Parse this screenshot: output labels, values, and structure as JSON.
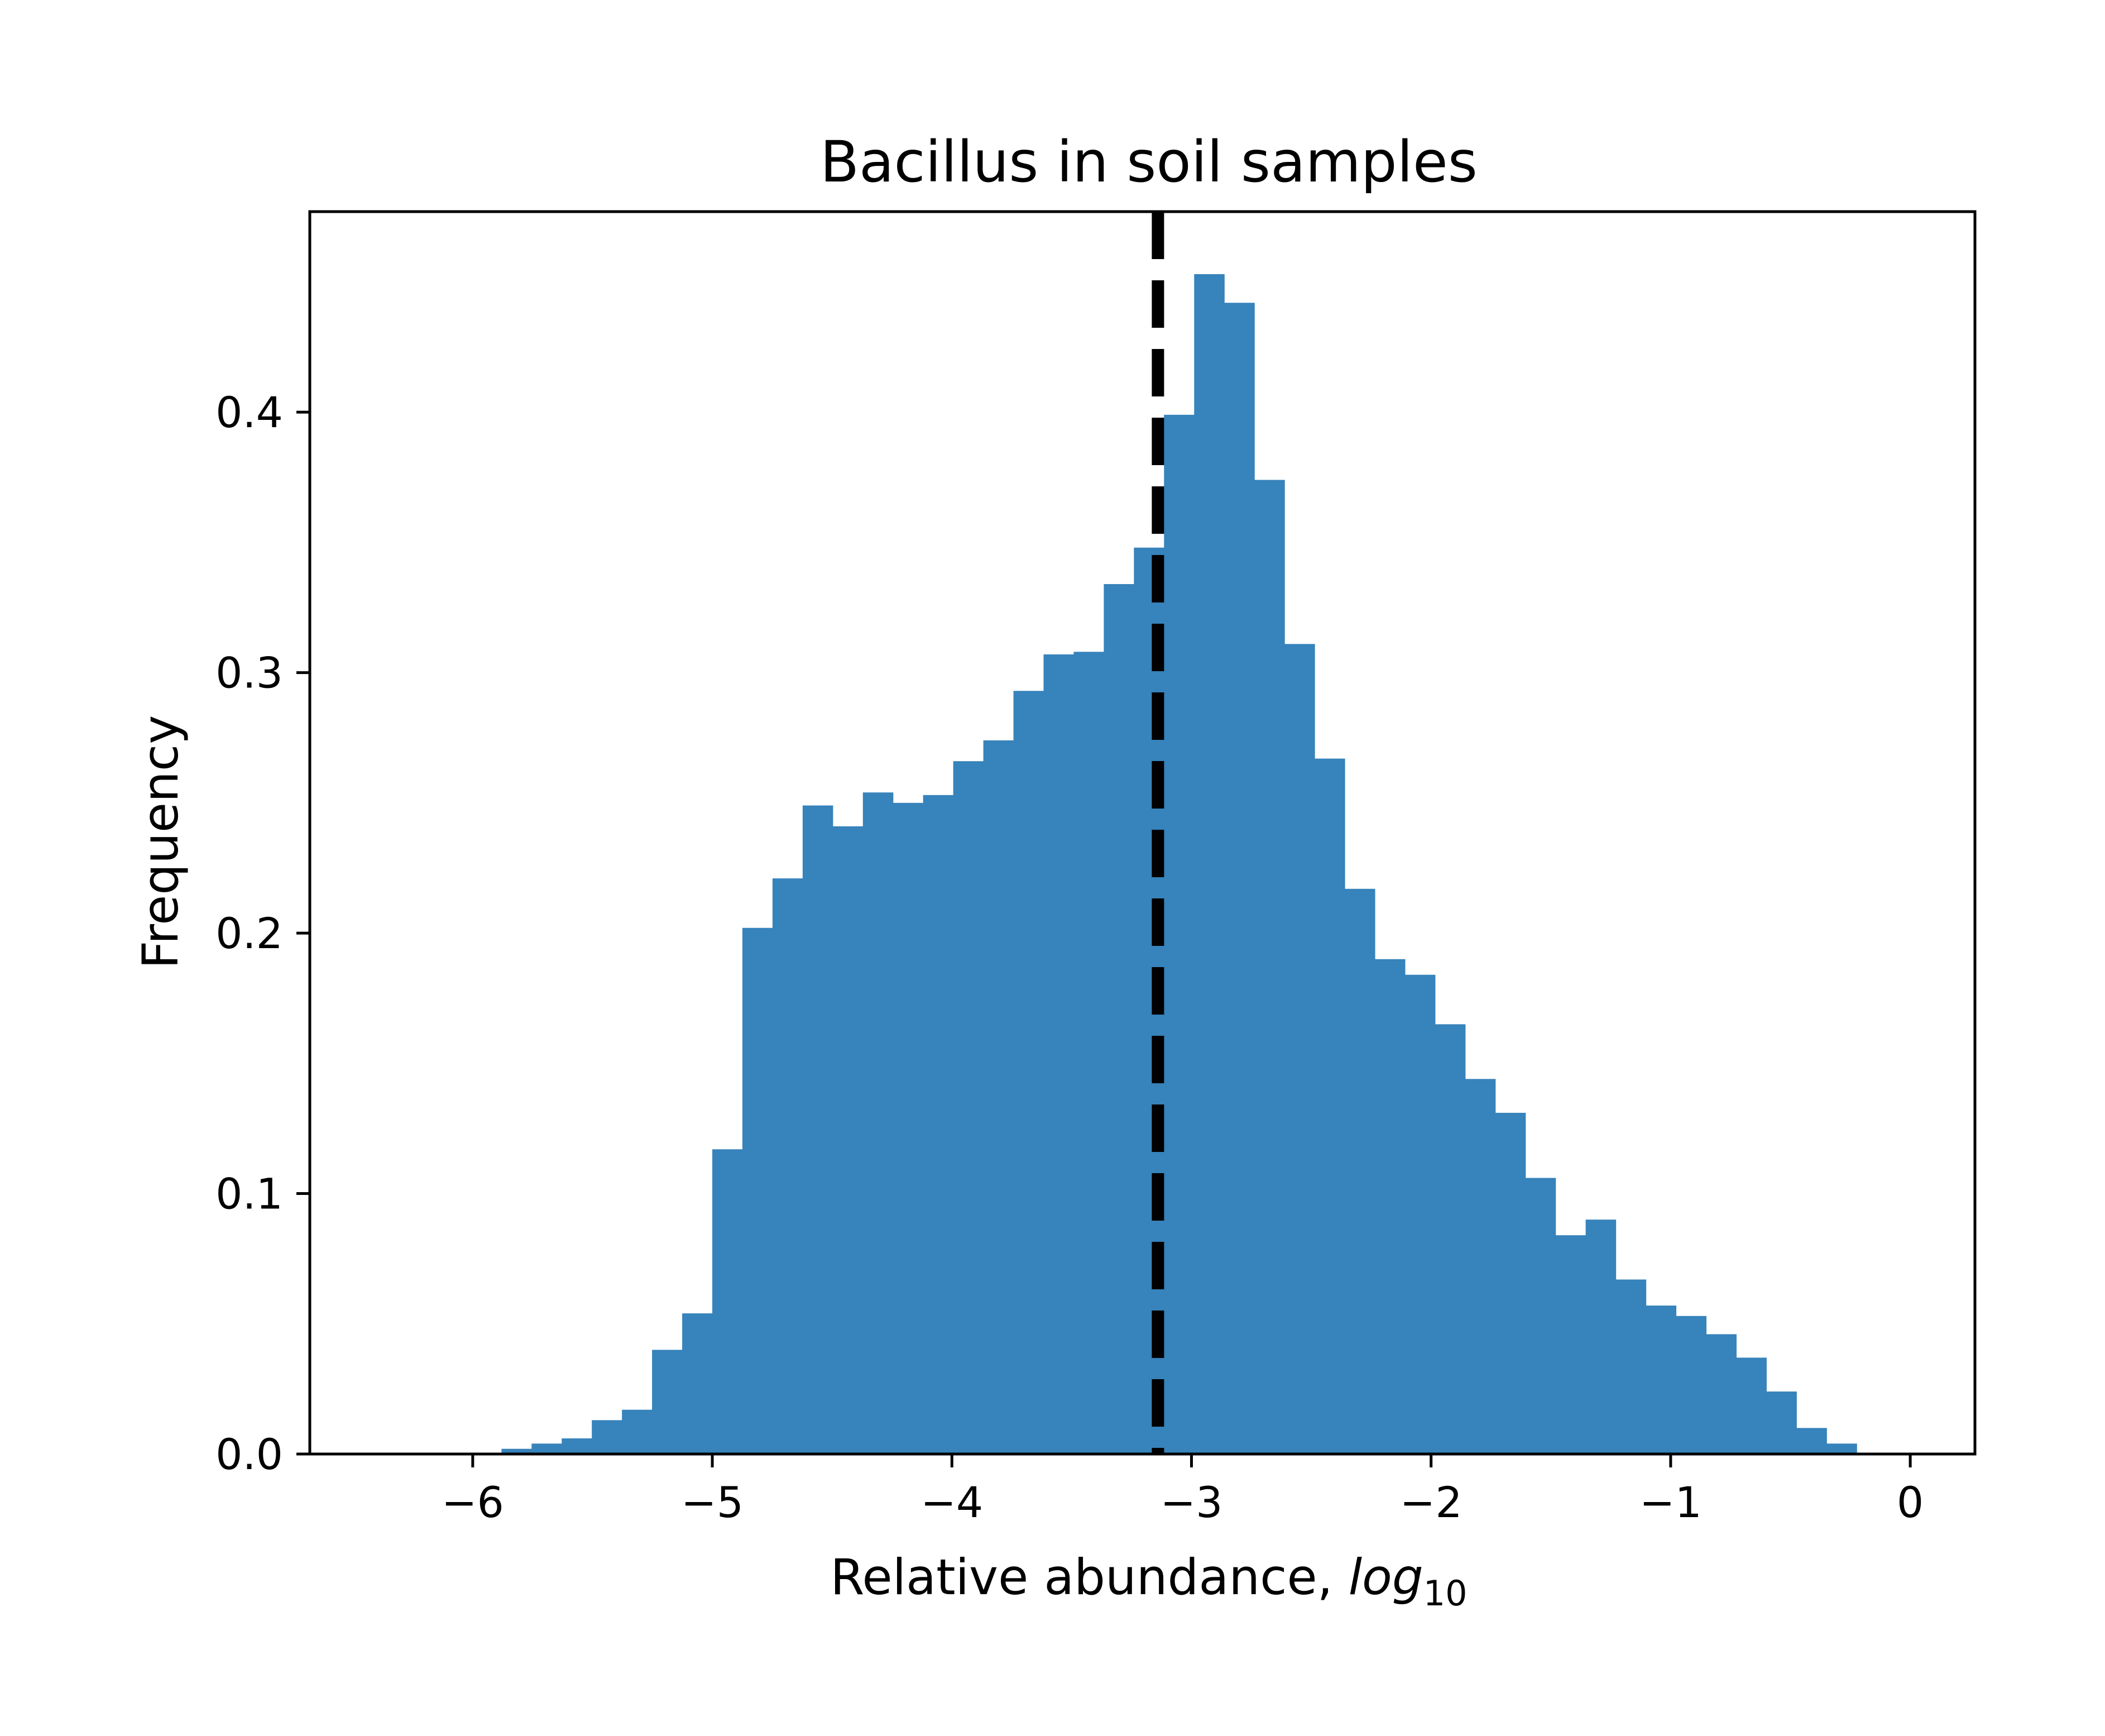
{
  "chart_data": {
    "type": "bar",
    "title": "Bacillus in soil samples",
    "xlabel_main": "Relative abundance, ",
    "xlabel_italic": "log",
    "xlabel_sub": "10",
    "ylabel": "Frequency",
    "xlim": [
      -6.68,
      0.27
    ],
    "ylim": [
      0,
      0.477
    ],
    "xticks": [
      -6,
      -5,
      -4,
      -3,
      -2,
      -1,
      0
    ],
    "xtick_labels": [
      "−6",
      "−5",
      "−4",
      "−3",
      "−2",
      "−1",
      "0"
    ],
    "yticks": [
      0.0,
      0.1,
      0.2,
      0.3,
      0.4
    ],
    "ytick_labels": [
      "0.0",
      "0.1",
      "0.2",
      "0.3",
      "0.4"
    ],
    "bin_start": -5.88,
    "bin_width": 0.1257,
    "values": [
      0.002,
      0.004,
      0.006,
      0.013,
      0.017,
      0.04,
      0.054,
      0.117,
      0.202,
      0.221,
      0.249,
      0.241,
      0.254,
      0.25,
      0.253,
      0.266,
      0.274,
      0.293,
      0.307,
      0.308,
      0.334,
      0.348,
      0.399,
      0.453,
      0.442,
      0.374,
      0.311,
      0.267,
      0.217,
      0.19,
      0.184,
      0.165,
      0.144,
      0.131,
      0.106,
      0.084,
      0.09,
      0.067,
      0.057,
      0.053,
      0.046,
      0.037,
      0.024,
      0.01,
      0.004
    ],
    "reference_line_x": -3.14,
    "colors": {
      "bar": "#3783bb",
      "reference_line": "#000000",
      "axes": "#000000"
    },
    "grid": false,
    "legend": "none"
  }
}
